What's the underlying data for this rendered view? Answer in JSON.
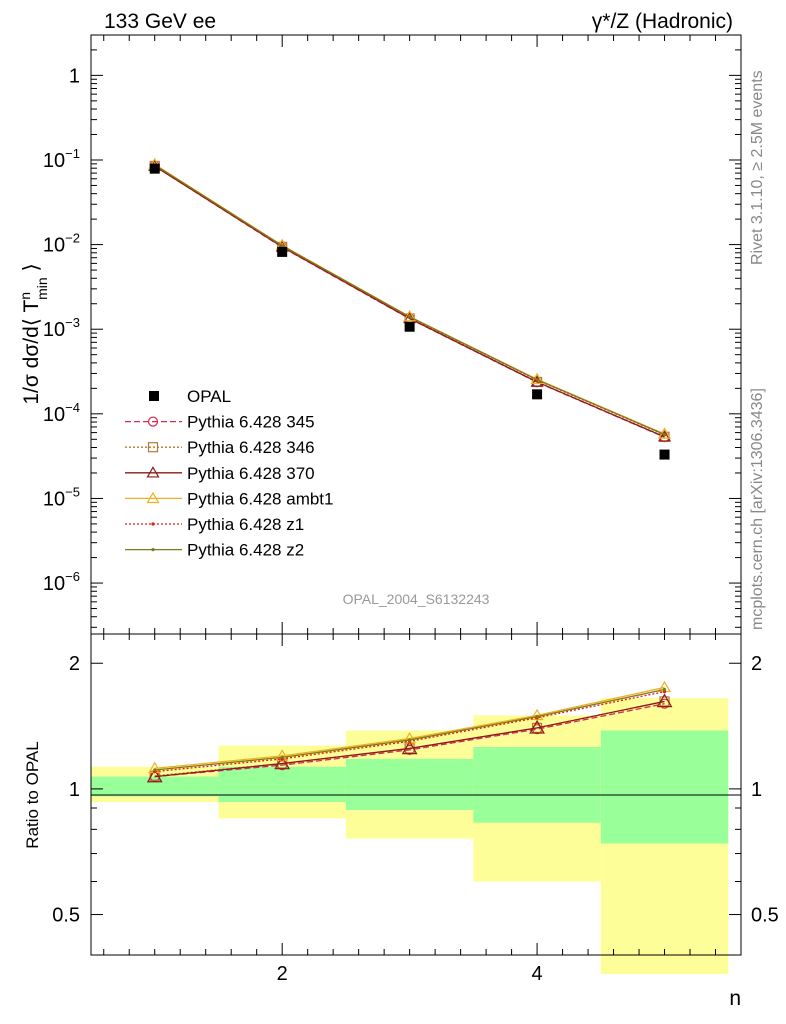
{
  "header": {
    "left_title": "133 GeV ee",
    "right_title": "γ*/Z (Hadronic)"
  },
  "side_labels": {
    "rivet": "Rivet 3.1.10, ≥ 2.5M events",
    "mcplots": "mcplots.cern.ch [arXiv:1306.3436]"
  },
  "chart_data": [
    {
      "type": "scatter",
      "panel": "main",
      "title": "133 GeV ee",
      "ylabel": "1/σ dσ/d⟨ T^n_min ⟩",
      "yscale": "log",
      "ylim": [
        2.5e-07,
        3.0
      ],
      "xlim": [
        0.5,
        5.6
      ],
      "y_tick_labels": [
        {
          "value": 1,
          "base": "1",
          "exp": ""
        },
        {
          "value": 0.1,
          "base": "10",
          "exp": "−1"
        },
        {
          "value": 0.01,
          "base": "10",
          "exp": "−2"
        },
        {
          "value": 0.001,
          "base": "10",
          "exp": "−3"
        },
        {
          "value": 0.0001,
          "base": "10",
          "exp": "−4"
        },
        {
          "value": 1e-05,
          "base": "10",
          "exp": "−5"
        },
        {
          "value": 1e-06,
          "base": "10",
          "exp": "−6"
        }
      ],
      "reference": "OPAL_2004_S6132243",
      "x": [
        1,
        2,
        3,
        4,
        5
      ],
      "data": {
        "name": "OPAL",
        "values": [
          0.079,
          0.0082,
          0.00107,
          0.00017,
          3.3e-05
        ]
      },
      "series": [
        {
          "name": "Pythia 6.428 345",
          "color": "#d62a52",
          "dash": "6,3",
          "marker": "circle",
          "values": [
            0.0845,
            0.0093,
            0.00133,
            0.000236,
            5.3e-05
          ]
        },
        {
          "name": "Pythia 6.428 346",
          "color": "#b07a34",
          "dash": "2,2",
          "marker": "square",
          "values": [
            0.085,
            0.0094,
            0.00134,
            0.000238,
            5.35e-05
          ]
        },
        {
          "name": "Pythia 6.428 370",
          "color": "#8b1a1a",
          "dash": "",
          "marker": "triangle",
          "values": [
            0.0845,
            0.0094,
            0.00134,
            0.000238,
            5.35e-05
          ]
        },
        {
          "name": "Pythia 6.428 ambt1",
          "color": "#f0b020",
          "dash": "",
          "marker": "triangle",
          "values": [
            0.0885,
            0.0098,
            0.00141,
            0.000256,
            5.78e-05
          ]
        },
        {
          "name": "Pythia 6.428 z1",
          "color": "#e8190e",
          "dash": "2,2",
          "marker": "dot",
          "values": [
            0.087,
            0.0096,
            0.00139,
            0.000251,
            5.65e-05
          ]
        },
        {
          "name": "Pythia 6.428 z2",
          "color": "#7a7a1e",
          "dash": "",
          "marker": "dot",
          "values": [
            0.0875,
            0.0097,
            0.0014,
            0.000253,
            5.7e-05
          ]
        }
      ]
    },
    {
      "type": "line",
      "panel": "ratio",
      "ylabel": "Ratio to OPAL",
      "xlabel": "n",
      "yscale": "log",
      "ylim": [
        0.4,
        2.35
      ],
      "xlim": [
        0.5,
        5.6
      ],
      "x_ticks": [
        2,
        4
      ],
      "y_ticks": [
        0.5,
        1,
        2
      ],
      "x": [
        1,
        2,
        3,
        4,
        5
      ],
      "bins": [
        [
          0.5,
          1.5
        ],
        [
          1.5,
          2.5
        ],
        [
          2.5,
          3.5
        ],
        [
          3.5,
          4.5
        ],
        [
          4.5,
          5.5
        ]
      ],
      "band_inner": [
        [
          0.96,
          1.07
        ],
        [
          0.93,
          1.13
        ],
        [
          0.89,
          1.18
        ],
        [
          0.83,
          1.26
        ],
        [
          0.74,
          1.38
        ]
      ],
      "band_outer": [
        [
          0.93,
          1.13
        ],
        [
          0.85,
          1.27
        ],
        [
          0.76,
          1.38
        ],
        [
          0.6,
          1.5
        ],
        [
          0.36,
          1.65
        ]
      ],
      "series": [
        {
          "name": "Pythia 6.428 345",
          "color": "#d62a52",
          "dash": "6,3",
          "marker": "circle",
          "values": [
            1.07,
            1.14,
            1.24,
            1.39,
            1.6
          ]
        },
        {
          "name": "Pythia 6.428 346",
          "color": "#b07a34",
          "dash": "2,2",
          "marker": "square",
          "values": [
            1.075,
            1.15,
            1.25,
            1.4,
            1.62
          ]
        },
        {
          "name": "Pythia 6.428 370",
          "color": "#8b1a1a",
          "dash": "",
          "marker": "triangle",
          "values": [
            1.07,
            1.15,
            1.25,
            1.4,
            1.62
          ]
        },
        {
          "name": "Pythia 6.428 ambt1",
          "color": "#f0b020",
          "dash": "",
          "marker": "triangle",
          "values": [
            1.12,
            1.2,
            1.32,
            1.5,
            1.75
          ]
        },
        {
          "name": "Pythia 6.428 z1",
          "color": "#e8190e",
          "dash": "2,2",
          "marker": "dot",
          "values": [
            1.1,
            1.18,
            1.3,
            1.48,
            1.71
          ]
        },
        {
          "name": "Pythia 6.428 z2",
          "color": "#7a7a1e",
          "dash": "",
          "marker": "dot",
          "values": [
            1.11,
            1.19,
            1.31,
            1.49,
            1.73
          ]
        }
      ]
    }
  ]
}
